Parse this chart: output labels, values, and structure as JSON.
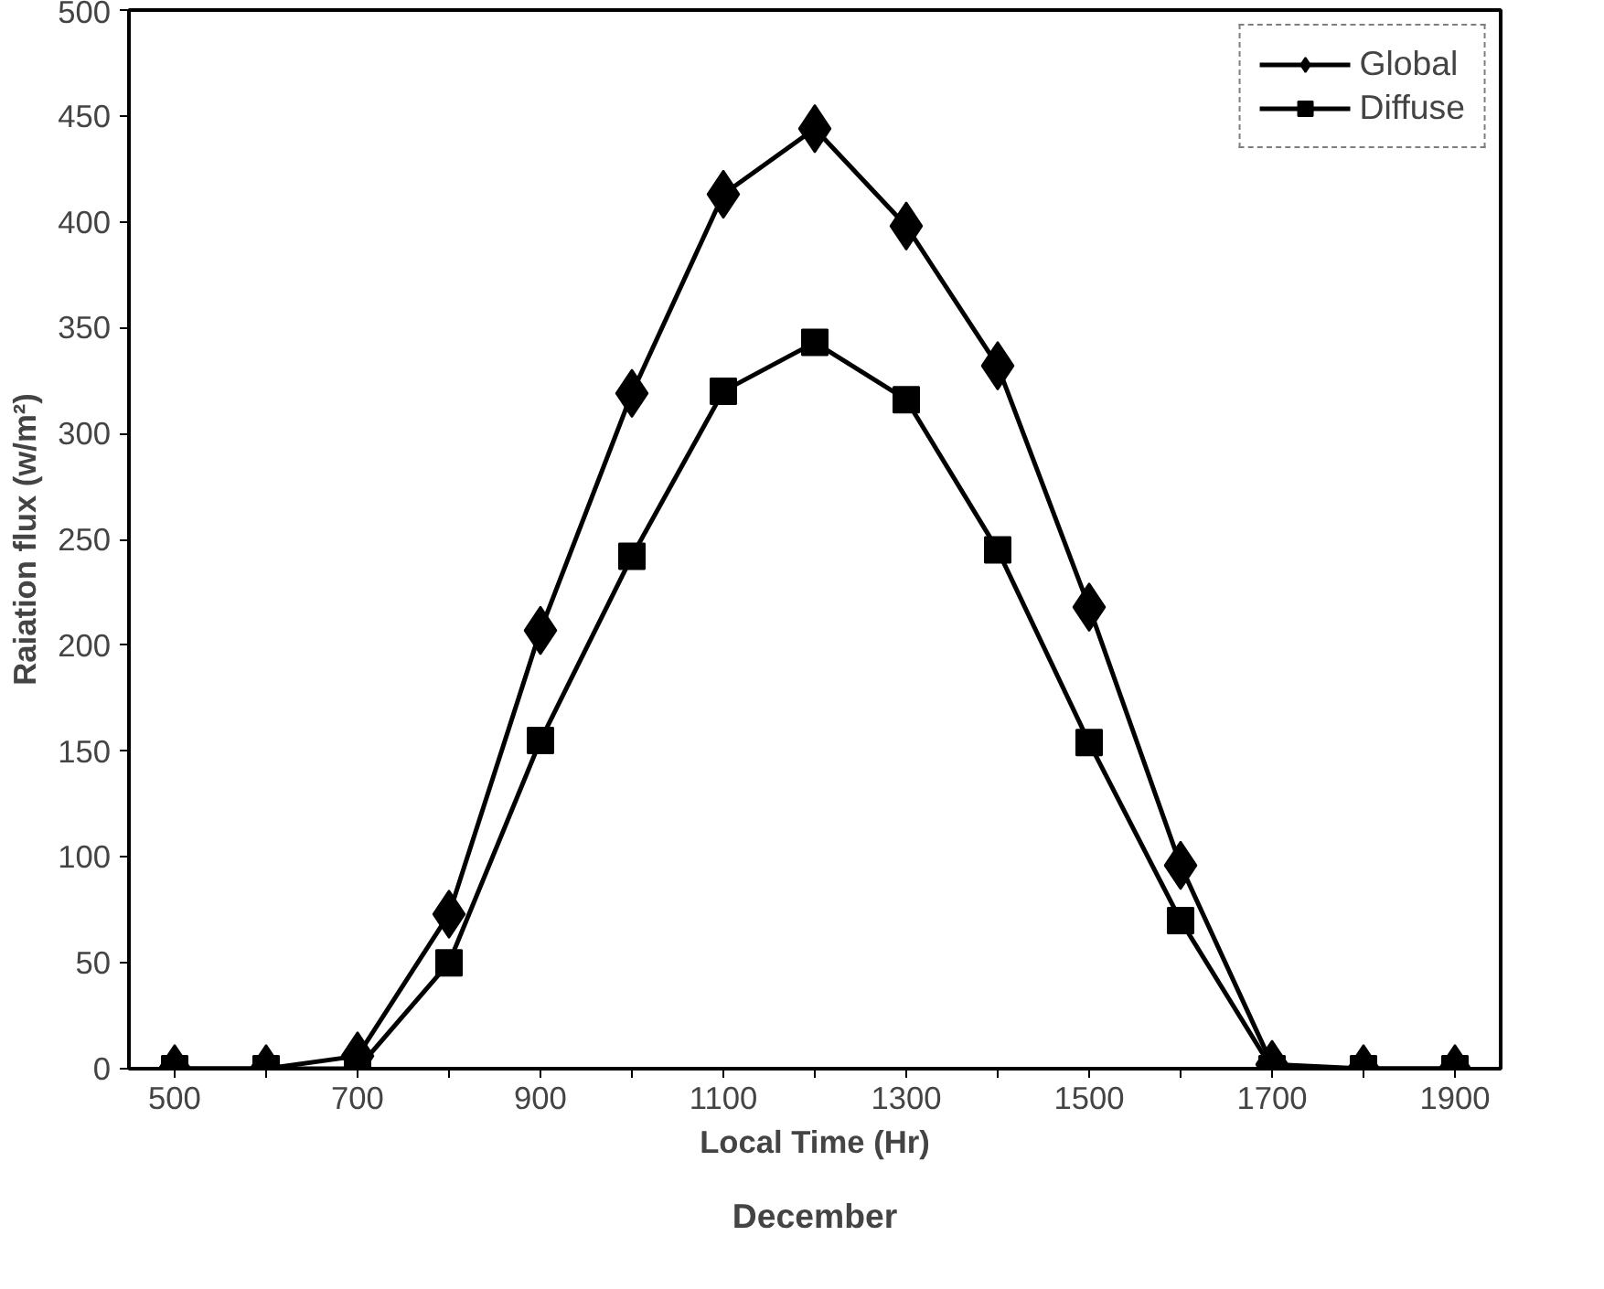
{
  "chart_data": {
    "type": "line",
    "title": "December",
    "xlabel": "Local Time (Hr)",
    "ylabel": "Raiation flux (w/m²)",
    "x": [
      500,
      600,
      700,
      800,
      900,
      1000,
      1100,
      1200,
      1300,
      1400,
      1500,
      1600,
      1700,
      1800,
      1900
    ],
    "series": [
      {
        "name": "Global",
        "color": "#000000",
        "marker": "diamond",
        "values": [
          0,
          0,
          6,
          73,
          207,
          319,
          413,
          444,
          398,
          332,
          218,
          96,
          2,
          0,
          0
        ]
      },
      {
        "name": "Diffuse",
        "color": "#000000",
        "marker": "square",
        "values": [
          0,
          0,
          0,
          50,
          155,
          242,
          320,
          343,
          316,
          245,
          154,
          70,
          0,
          0,
          0
        ]
      }
    ],
    "xlim": [
      450,
      1950
    ],
    "xticks": [
      500,
      {
        "value": 600,
        "label": null
      },
      700,
      {
        "value": 800,
        "label": null
      },
      900,
      {
        "value": 1000,
        "label": null
      },
      1100,
      {
        "value": 1200,
        "label": null
      },
      1300,
      {
        "value": 1400,
        "label": null
      },
      1500,
      {
        "value": 1600,
        "label": null
      },
      1700,
      {
        "value": 1800,
        "label": null
      },
      1900
    ],
    "ylim": [
      0,
      500
    ],
    "yticks": [
      0,
      50,
      100,
      150,
      200,
      250,
      300,
      350,
      400,
      450,
      500
    ],
    "grid": false,
    "legend": "top right",
    "line_style": "solid"
  }
}
